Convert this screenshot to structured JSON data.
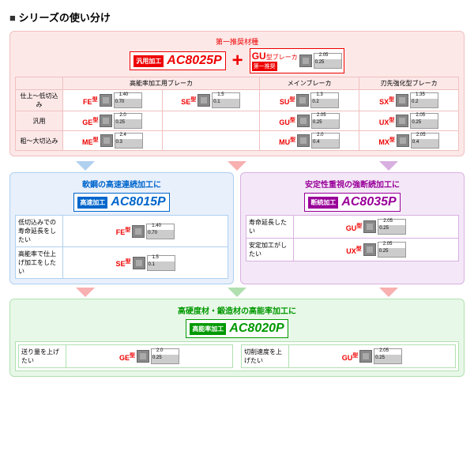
{
  "title": "シリーズの使い分け",
  "top": {
    "rec": "第一推奨材種",
    "pre": "汎用加工",
    "grade": "AC8025P",
    "gu_label": "GU",
    "gu_suffix": "型ブレーカ",
    "gu_rec": "第一推奨",
    "headers": [
      "",
      "高能率加工用ブレーカ",
      "",
      "メインブレーカ",
      "刃先強化型ブレーカ"
    ],
    "rows": [
      {
        "label": "仕上～低切込み",
        "cells": [
          {
            "b": "FE",
            "n1": "1.40",
            "n2": "0.70"
          },
          {
            "b": "SE",
            "n1": "1.5",
            "n2": "0.1"
          },
          {
            "b": "SU",
            "n1": "1.3",
            "n2": "0.2"
          },
          {
            "b": "SX",
            "n1": "1.35",
            "n2": "0.2"
          }
        ]
      },
      {
        "label": "汎用",
        "cells": [
          {
            "b": "GE",
            "n1": "2.0",
            "n2": "0.25"
          },
          {
            "b": "",
            "n1": "",
            "n2": ""
          },
          {
            "b": "GU",
            "n1": "2.05",
            "n2": "0.25"
          },
          {
            "b": "UX",
            "n1": "2.05",
            "n2": "0.25"
          }
        ]
      },
      {
        "label": "粗～大切込み",
        "cells": [
          {
            "b": "ME",
            "n1": "2.4",
            "n2": "0.3"
          },
          {
            "b": "",
            "n1": "",
            "n2": ""
          },
          {
            "b": "MU",
            "n1": "2.0",
            "n2": "0.4"
          },
          {
            "b": "MX",
            "n1": "2.05",
            "n2": "0.4"
          }
        ]
      }
    ]
  },
  "mid": {
    "blue": {
      "title": "軟鋼の高速連続加工に",
      "pre": "高速加工",
      "grade": "AC8015P",
      "rows": [
        {
          "desc": "低切込みでの寿命延長をしたい",
          "b": "FE",
          "n1": "1.40",
          "n2": "0.70"
        },
        {
          "desc": "高能率で仕上げ加工をしたい",
          "b": "SE",
          "n1": "1.5",
          "n2": "0.1"
        }
      ]
    },
    "purple": {
      "title": "安定性重視の強断続加工に",
      "pre": "断続加工",
      "grade": "AC8035P",
      "rows": [
        {
          "desc": "寿命延長したい",
          "b": "GU",
          "n1": "2.05",
          "n2": "0.25"
        },
        {
          "desc": "安定加工がしたい",
          "b": "UX",
          "n1": "2.05",
          "n2": "0.25"
        }
      ]
    }
  },
  "bottom": {
    "title": "高硬度材・鍛造材の高能率加工に",
    "pre": "高能率加工",
    "grade": "AC8020P",
    "rows": [
      {
        "desc": "送り量を上げたい",
        "b": "GE",
        "n1": "2.0",
        "n2": "0.25"
      },
      {
        "desc": "切削速度を上げたい",
        "b": "GU",
        "n1": "2.05",
        "n2": "0.25"
      }
    ]
  },
  "suffix": "型"
}
